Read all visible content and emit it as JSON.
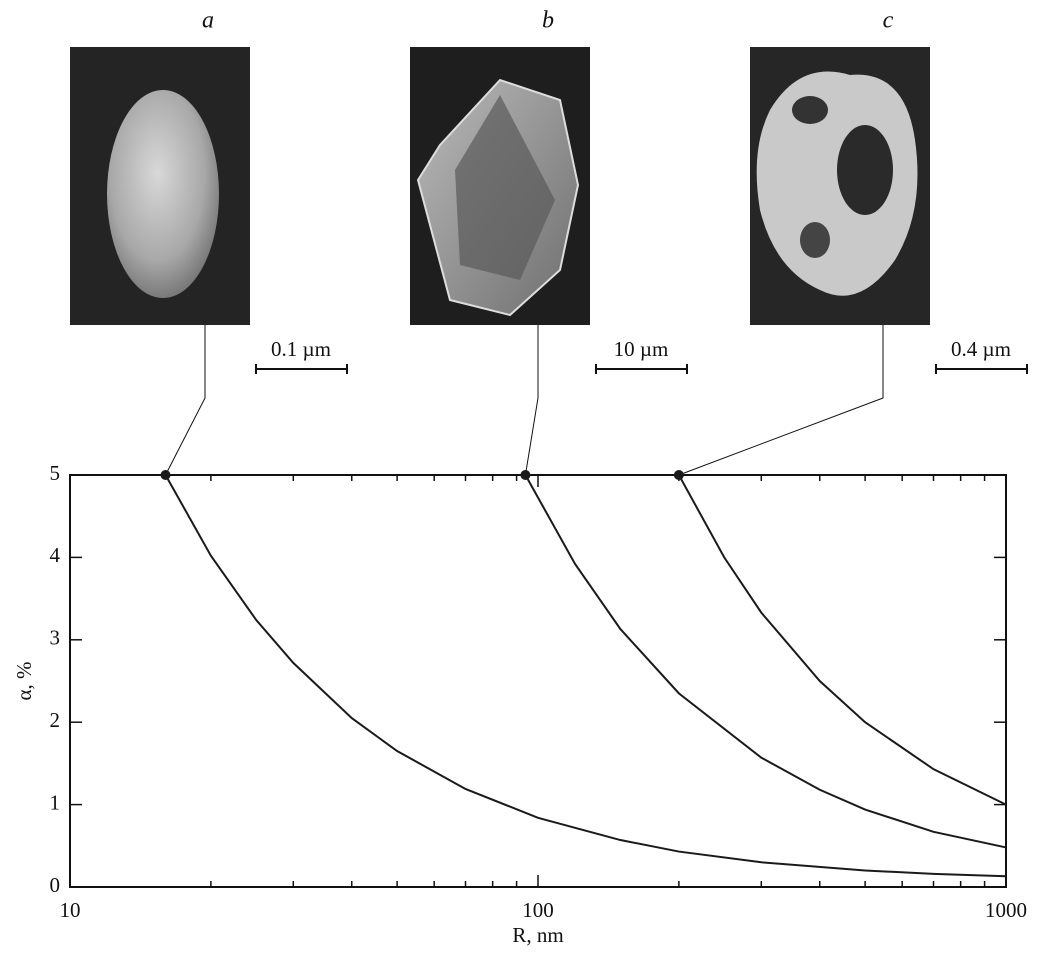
{
  "chart_data": {
    "type": "line",
    "x_label": "R, nm",
    "y_label": "α, %",
    "xscale": "log",
    "xlim": [
      10,
      1000
    ],
    "ylim": [
      0,
      5
    ],
    "xticks": [
      10,
      100,
      1000
    ],
    "yticks": [
      0,
      1,
      2,
      3,
      4,
      5
    ],
    "xminorticks": [
      20,
      30,
      40,
      50,
      60,
      70,
      80,
      90,
      200,
      300,
      400,
      500,
      600,
      700,
      800,
      900
    ],
    "series": [
      {
        "name": "a",
        "color": "#1a1a1a",
        "x": [
          16,
          20,
          25,
          30,
          40,
          50,
          70,
          100,
          150,
          200,
          300,
          500,
          700,
          1000
        ],
        "values": [
          5,
          4.02,
          3.24,
          2.72,
          2.05,
          1.65,
          1.19,
          0.84,
          0.57,
          0.43,
          0.3,
          0.2,
          0.16,
          0.13
        ]
      },
      {
        "name": "b",
        "color": "#1a1a1a",
        "x": [
          94,
          120,
          150,
          200,
          300,
          400,
          500,
          700,
          1000
        ],
        "values": [
          5,
          3.92,
          3.13,
          2.35,
          1.57,
          1.18,
          0.94,
          0.67,
          0.48
        ]
      },
      {
        "name": "c",
        "color": "#1a1a1a",
        "x": [
          200,
          250,
          300,
          400,
          500,
          700,
          1000
        ],
        "values": [
          5,
          4,
          3.33,
          2.5,
          2,
          1.43,
          1
        ]
      }
    ]
  },
  "panels": [
    {
      "scale_bar": "0.1 µm"
    },
    {
      "scale_bar": "10 µm"
    },
    {
      "scale_bar": "0.4 µm"
    }
  ]
}
